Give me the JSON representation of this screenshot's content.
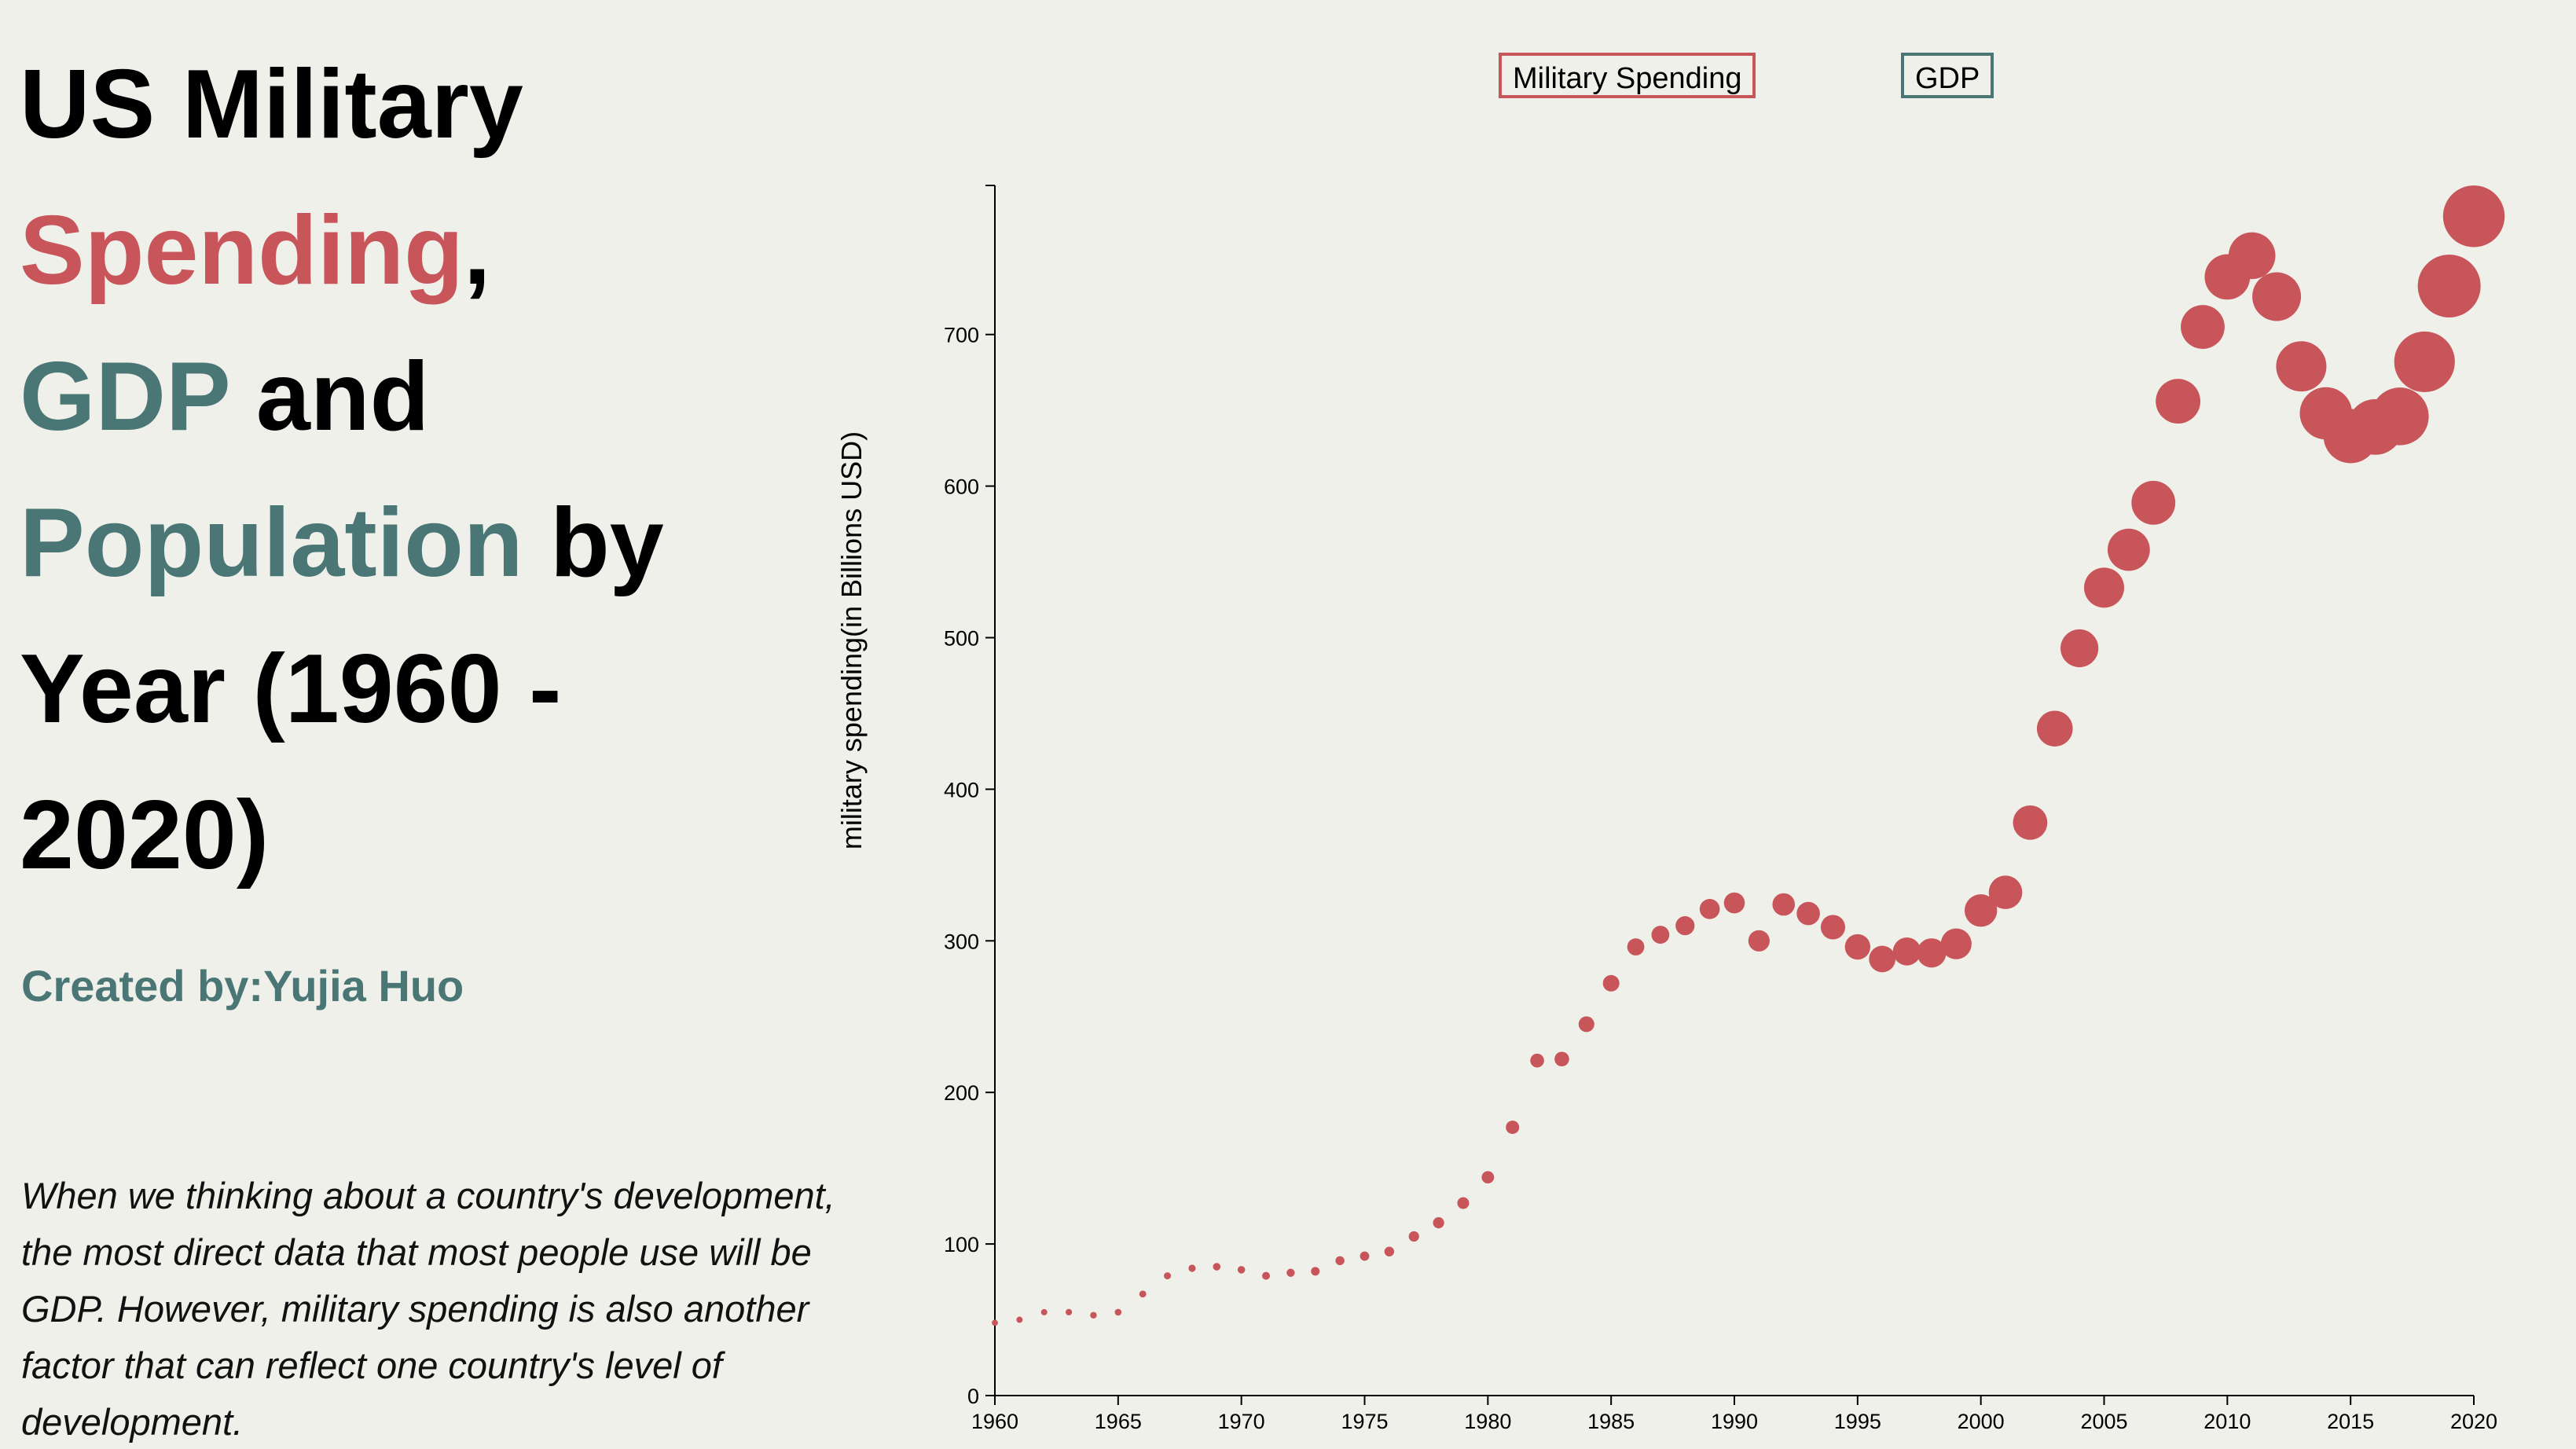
{
  "title": {
    "line1": "US Military",
    "spending": "Spending",
    "comma": ",",
    "gdp": "GDP",
    "and": " and",
    "population": "Population",
    "by": " by",
    "year_line": "Year (1960 -",
    "year_end": "2020)"
  },
  "credit": "Created by:Yujia Huo",
  "description": "When we thinking about a country's development, the most direct data that most people use will be GDP. However, military spending is also another factor that can reflect one country's level of development.",
  "legend": {
    "military": "Military Spending",
    "gdp": "GDP"
  },
  "colors": {
    "military": "#c85559",
    "teal": "#4a7676",
    "background": "#f0f0eb"
  },
  "chart_data": {
    "type": "scatter",
    "title": "",
    "xlabel": "",
    "ylabel": "military spending(in Billions USD)",
    "xlim": [
      1960,
      2020
    ],
    "ylim": [
      0,
      800
    ],
    "x_ticks": [
      1960,
      1965,
      1970,
      1975,
      1980,
      1985,
      1990,
      1995,
      2000,
      2005,
      2010,
      2015,
      2020
    ],
    "y_ticks": [
      0,
      100,
      200,
      300,
      400,
      500,
      600,
      700
    ],
    "series": [
      {
        "name": "Military Spending",
        "x": [
          1960,
          1961,
          1962,
          1963,
          1964,
          1965,
          1966,
          1967,
          1968,
          1969,
          1970,
          1971,
          1972,
          1973,
          1974,
          1975,
          1976,
          1977,
          1978,
          1979,
          1980,
          1981,
          1982,
          1983,
          1984,
          1985,
          1986,
          1987,
          1988,
          1989,
          1990,
          1991,
          1992,
          1993,
          1994,
          1995,
          1996,
          1997,
          1998,
          1999,
          2000,
          2001,
          2002,
          2003,
          2004,
          2005,
          2006,
          2007,
          2008,
          2009,
          2010,
          2011,
          2012,
          2013,
          2014,
          2015,
          2016,
          2017,
          2018,
          2019,
          2020
        ],
        "values": [
          48,
          50,
          55,
          55,
          53,
          55,
          67,
          79,
          84,
          85,
          83,
          79,
          81,
          82,
          89,
          92,
          95,
          105,
          114,
          127,
          144,
          177,
          221,
          222,
          245,
          272,
          296,
          304,
          310,
          321,
          325,
          300,
          324,
          318,
          309,
          296,
          288,
          293,
          292,
          298,
          320,
          332,
          378,
          440,
          493,
          533,
          558,
          589,
          656,
          705,
          738,
          752,
          725,
          679,
          648,
          633,
          639,
          646,
          682,
          732,
          778
        ],
        "size_by": "GDP",
        "gdp": [
          0.54,
          0.56,
          0.6,
          0.64,
          0.69,
          0.74,
          0.82,
          0.86,
          0.94,
          1.02,
          1.07,
          1.16,
          1.28,
          1.43,
          1.55,
          1.69,
          1.88,
          2.09,
          2.36,
          2.63,
          2.86,
          3.21,
          3.34,
          3.64,
          4.04,
          4.35,
          4.59,
          4.87,
          5.25,
          5.66,
          5.96,
          6.16,
          6.52,
          6.86,
          7.29,
          7.64,
          8.07,
          8.58,
          9.06,
          9.63,
          10.25,
          10.58,
          10.94,
          11.46,
          12.21,
          13.04,
          13.82,
          14.45,
          14.71,
          14.45,
          14.99,
          15.54,
          16.2,
          16.78,
          17.53,
          18.24,
          18.75,
          19.54,
          20.61,
          21.43,
          20.94
        ]
      }
    ]
  }
}
